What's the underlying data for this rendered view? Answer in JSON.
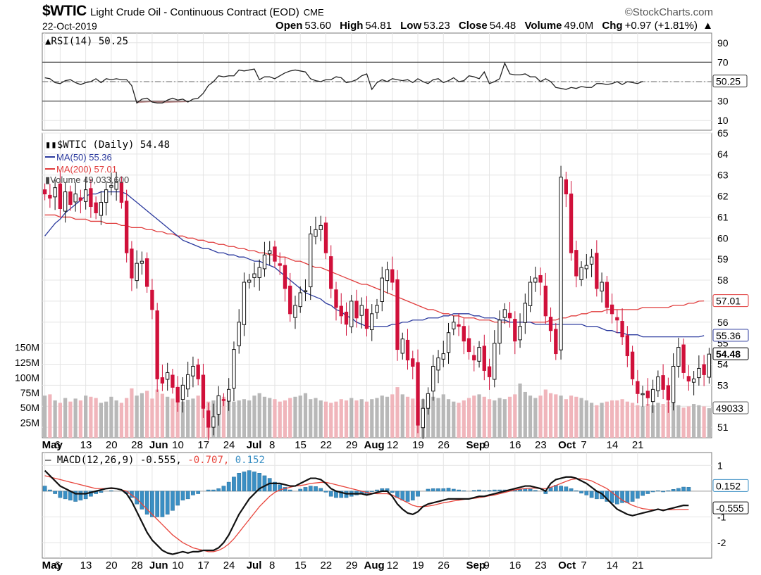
{
  "header": {
    "symbol": "$WTIC",
    "description": "Light Crude Oil - Continuous Contract (EOD)",
    "exchange": "CME",
    "brand": "©StockCharts.com",
    "date": "22-Oct-2019",
    "open_label": "Open",
    "open": "53.60",
    "high_label": "High",
    "high": "54.81",
    "low_label": "Low",
    "low": "53.23",
    "close_label": "Close",
    "close": "54.48",
    "volume_label": "Volume",
    "volume": "49.0M",
    "chg_label": "Chg",
    "chg": "+0.97 (+1.81%)"
  },
  "colors": {
    "up": "#ffffff",
    "down": "#d0103a",
    "ma50": "#2b3a9e",
    "ma200": "#e03c3c",
    "macd_signal": "#e8453c",
    "macd_hist": "#3a8fc4",
    "vol_up": "#b8b8b8",
    "vol_down": "#f0b5bb"
  },
  "chart_data": [
    {
      "type": "line",
      "panel": "rsi",
      "legend": "RSI(14) 50.25",
      "ylim": [
        0,
        100
      ],
      "yticks": [
        "90",
        "70",
        "50",
        "30",
        "10"
      ],
      "reference_lines": [
        70,
        30
      ],
      "last_value_label": "50.25",
      "values": [
        54,
        53,
        49,
        48,
        51,
        52,
        49,
        47,
        49,
        50,
        53,
        49,
        53,
        52,
        53,
        52,
        52,
        46,
        28,
        32,
        33,
        29,
        28,
        28,
        31,
        33,
        31,
        32,
        29,
        32,
        33,
        38,
        46,
        50,
        56,
        55,
        56,
        56,
        62,
        61,
        62,
        63,
        52,
        55,
        55,
        53,
        56,
        59,
        61,
        62,
        61,
        60,
        53,
        51,
        50,
        52,
        52,
        55,
        54,
        49,
        50,
        52,
        56,
        58,
        42,
        49,
        52,
        50,
        53,
        52,
        51,
        52,
        49,
        53,
        50,
        48,
        52,
        53,
        49,
        51,
        54,
        50,
        51,
        56,
        55,
        53,
        60,
        48,
        50,
        53,
        69,
        58,
        57,
        57,
        58,
        55,
        55,
        50,
        53,
        50,
        44,
        43,
        42,
        44,
        43,
        45,
        44,
        44,
        48,
        48,
        47,
        48,
        50,
        47,
        50,
        49,
        48,
        50.25
      ]
    },
    {
      "type": "candlestick",
      "panel": "price",
      "legend": {
        "price": "$WTIC (Daily) 54.48",
        "ma50": "MA(50) 55.36",
        "ma200": "MA(200) 57.01",
        "volume": "Volume 49,033,600"
      },
      "ylim": [
        50.5,
        65
      ],
      "yticks": [
        "65",
        "64",
        "63",
        "62",
        "61",
        "60",
        "59",
        "58",
        "57",
        "56",
        "55",
        "54",
        "53",
        "52",
        "51"
      ],
      "volume_ticks": [
        "150M",
        "125M",
        "100M",
        "75M",
        "50M",
        "25M"
      ],
      "last_labels": {
        "ma200": "57.01",
        "ma50": "55.36",
        "close": "54.48",
        "volume": "49033"
      },
      "x_labels": [
        "May",
        "6",
        "13",
        "20",
        "28",
        "Jun",
        "10",
        "17",
        "24",
        "Jul",
        "8",
        "15",
        "22",
        "29",
        "Aug",
        "12",
        "19",
        "26",
        "Sep",
        "9",
        "16",
        "23",
        "Oct",
        "7",
        "14",
        "21"
      ],
      "closes": [
        62.1,
        61.9,
        62.4,
        61.4,
        62.2,
        61.6,
        62.1,
        61.8,
        62.3,
        61.5,
        61.2,
        61.7,
        62.3,
        62.5,
        62.7,
        61.7,
        59.3,
        58.1,
        58.8,
        58.9,
        57.7,
        56.6,
        53.3,
        53.1,
        53.6,
        52.9,
        52.2,
        53.0,
        53.5,
        53.9,
        53.3,
        51.9,
        51.0,
        51.5,
        52.5,
        52.3,
        52.8,
        54.7,
        56.0,
        57.9,
        58.0,
        58.3,
        58.6,
        59.2,
        59.4,
        58.9,
        58.7,
        57.6,
        56.4,
        56.8,
        57.4,
        57.5,
        60.2,
        60.4,
        60.6,
        59.3,
        57.6,
        56.7,
        56.3,
        55.9,
        57.0,
        56.2,
        56.8,
        55.7,
        56.4,
        56.8,
        58.1,
        58.5,
        57.9,
        54.7,
        55.2,
        54.2,
        53.9,
        51.1,
        51.9,
        52.6,
        53.9,
        54.3,
        54.5,
        55.5,
        56.0,
        55.8,
        55.1,
        54.6,
        54.2,
        54.8,
        53.7,
        53.4,
        55.0,
        56.1,
        56.6,
        56.2,
        55.1,
        55.8,
        56.9,
        57.9,
        58.1,
        57.9,
        56.3,
        55.6,
        54.5,
        62.9,
        62.1,
        59.3,
        58.2,
        58.6,
        58.7,
        59.1,
        57.6,
        57.9,
        56.7,
        56.4,
        56.1,
        55.3,
        54.4,
        53.3,
        52.6,
        52.6,
        52.4,
        52.8,
        53.4,
        52.8,
        52.3,
        53.9,
        54.8,
        53.6,
        53.2,
        53.3,
        53.8,
        53.5,
        54.48
      ],
      "ma50": [
        60.1,
        60.4,
        60.7,
        60.9,
        61.2,
        61.4,
        61.6,
        61.8,
        62.0,
        62.1,
        62.1,
        62.2,
        62.2,
        62.2,
        62.2,
        62.2,
        62.1,
        61.9,
        61.7,
        61.5,
        61.3,
        61.1,
        60.9,
        60.7,
        60.5,
        60.3,
        60.1,
        59.9,
        59.8,
        59.7,
        59.6,
        59.5,
        59.5,
        59.4,
        59.3,
        59.3,
        59.2,
        59.2,
        59.1,
        59.1,
        59.0,
        58.9,
        58.9,
        58.8,
        58.7,
        58.6,
        58.4,
        58.2,
        58.0,
        57.8,
        57.6,
        57.4,
        57.3,
        57.2,
        57.1,
        56.9,
        56.8,
        56.6,
        56.5,
        56.3,
        56.2,
        56.0,
        55.9,
        55.8,
        55.8,
        55.8,
        55.8,
        55.8,
        55.9,
        55.9,
        56.0,
        56.0,
        56.1,
        56.1,
        56.1,
        56.2,
        56.2,
        56.2,
        56.3,
        56.3,
        56.4,
        56.4,
        56.4,
        56.4,
        56.3,
        56.3,
        56.2,
        56.2,
        56.2,
        56.1,
        56.1,
        56.0,
        56.0,
        56.0,
        56.0,
        56.0,
        55.9,
        55.9,
        55.9,
        55.9,
        55.9,
        55.9,
        55.9,
        55.9,
        55.9,
        55.9,
        55.8,
        55.8,
        55.8,
        55.7,
        55.6,
        55.6,
        55.5,
        55.5,
        55.4,
        55.4,
        55.4,
        55.3,
        55.3,
        55.3,
        55.3,
        55.3,
        55.3,
        55.3,
        55.3,
        55.3,
        55.3,
        55.3,
        55.3,
        55.36
      ],
      "ma200": [
        61.1,
        61.1,
        61.1,
        61.0,
        61.0,
        61.0,
        60.9,
        60.9,
        60.9,
        60.8,
        60.8,
        60.8,
        60.7,
        60.7,
        60.7,
        60.6,
        60.6,
        60.5,
        60.5,
        60.5,
        60.4,
        60.4,
        60.3,
        60.3,
        60.2,
        60.2,
        60.1,
        60.1,
        60.0,
        60.0,
        59.9,
        59.9,
        59.8,
        59.8,
        59.7,
        59.7,
        59.6,
        59.6,
        59.5,
        59.5,
        59.4,
        59.4,
        59.3,
        59.3,
        59.2,
        59.2,
        59.1,
        59.1,
        59.0,
        58.9,
        58.9,
        58.8,
        58.7,
        58.6,
        58.6,
        58.5,
        58.4,
        58.3,
        58.2,
        58.1,
        58.0,
        57.9,
        57.8,
        57.8,
        57.7,
        57.6,
        57.5,
        57.4,
        57.3,
        57.2,
        57.1,
        57.0,
        56.9,
        56.8,
        56.7,
        56.6,
        56.6,
        56.5,
        56.4,
        56.4,
        56.3,
        56.3,
        56.2,
        56.2,
        56.2,
        56.1,
        56.1,
        56.1,
        56.0,
        56.0,
        56.0,
        56.0,
        56.0,
        56.0,
        56.0,
        56.0,
        56.0,
        56.0,
        56.0,
        56.1,
        56.1,
        56.2,
        56.2,
        56.3,
        56.3,
        56.4,
        56.4,
        56.5,
        56.5,
        56.5,
        56.6,
        56.6,
        56.6,
        56.6,
        56.6,
        56.6,
        56.6,
        56.7,
        56.7,
        56.7,
        56.7,
        56.7,
        56.7,
        56.8,
        56.8,
        56.8,
        56.9,
        56.9,
        57.0,
        57.01
      ],
      "volume_m": [
        70,
        72,
        62,
        58,
        66,
        60,
        65,
        62,
        70,
        68,
        66,
        58,
        60,
        68,
        62,
        58,
        66,
        82,
        70,
        74,
        78,
        65,
        80,
        73,
        68,
        65,
        70,
        60,
        63,
        65,
        70,
        72,
        60,
        62,
        66,
        68,
        76,
        60,
        62,
        64,
        62,
        70,
        74,
        68,
        66,
        64,
        60,
        62,
        66,
        68,
        70,
        74,
        64,
        66,
        62,
        60,
        58,
        60,
        64,
        62,
        66,
        62,
        64,
        60,
        64,
        66,
        70,
        68,
        72,
        84,
        72,
        68,
        65,
        60,
        64,
        70,
        68,
        66,
        72,
        64,
        60,
        58,
        62,
        66,
        70,
        72,
        68,
        64,
        62,
        66,
        64,
        68,
        72,
        90,
        76,
        70,
        66,
        70,
        80,
        74,
        72,
        70,
        64,
        70,
        68,
        66,
        62,
        58,
        54,
        58,
        60,
        62,
        62,
        64,
        60,
        58,
        54,
        52,
        56,
        54,
        58,
        56,
        60,
        62,
        54,
        50,
        52,
        56,
        54,
        52,
        49
      ]
    },
    {
      "type": "line",
      "panel": "macd",
      "legend": {
        "name": "MACD(12,26,9)",
        "macd": "-0.555",
        "signal": "-0.707",
        "hist": "0.152"
      },
      "ylim": [
        -2.6,
        1.5
      ],
      "yticks": [
        "1",
        "-1",
        "-2"
      ],
      "last_labels": {
        "hist": "0.152",
        "macd": "-0.555"
      },
      "macd": [
        0.8,
        0.6,
        0.4,
        0.2,
        0.1,
        0.0,
        -0.1,
        -0.1,
        -0.1,
        -0.05,
        0.0,
        0.05,
        0.1,
        0.12,
        0.1,
        0.05,
        -0.1,
        -0.4,
        -0.8,
        -1.2,
        -1.6,
        -1.9,
        -2.1,
        -2.3,
        -2.4,
        -2.45,
        -2.4,
        -2.35,
        -2.4,
        -2.35,
        -2.35,
        -2.3,
        -2.3,
        -2.3,
        -2.2,
        -2.0,
        -1.7,
        -1.3,
        -0.9,
        -0.6,
        -0.3,
        -0.1,
        0.1,
        0.2,
        0.3,
        0.3,
        0.3,
        0.25,
        0.2,
        0.2,
        0.3,
        0.4,
        0.5,
        0.5,
        0.45,
        0.3,
        0.1,
        0.0,
        -0.05,
        -0.1,
        -0.1,
        -0.1,
        -0.1,
        -0.15,
        -0.1,
        -0.05,
        0.0,
        0.0,
        -0.2,
        -0.5,
        -0.7,
        -0.85,
        -0.9,
        -0.8,
        -0.6,
        -0.5,
        -0.45,
        -0.4,
        -0.35,
        -0.3,
        -0.3,
        -0.3,
        -0.3,
        -0.3,
        -0.25,
        -0.2,
        -0.2,
        -0.15,
        -0.1,
        -0.05,
        0.0,
        0.05,
        0.1,
        0.15,
        0.2,
        0.2,
        0.15,
        0.1,
        0.0,
        0.3,
        0.45,
        0.5,
        0.55,
        0.55,
        0.5,
        0.4,
        0.3,
        0.15,
        0.0,
        -0.1,
        -0.3,
        -0.5,
        -0.7,
        -0.8,
        -0.9,
        -0.95,
        -0.9,
        -0.85,
        -0.8,
        -0.75,
        -0.7,
        -0.75,
        -0.7,
        -0.65,
        -0.6,
        -0.55,
        -0.555
      ],
      "signal": [
        0.6,
        0.55,
        0.5,
        0.45,
        0.4,
        0.35,
        0.3,
        0.25,
        0.2,
        0.15,
        0.1,
        0.1,
        0.1,
        0.1,
        0.1,
        0.05,
        0.0,
        -0.15,
        -0.3,
        -0.5,
        -0.7,
        -0.9,
        -1.1,
        -1.3,
        -1.5,
        -1.7,
        -1.85,
        -2.0,
        -2.1,
        -2.2,
        -2.25,
        -2.3,
        -2.35,
        -2.35,
        -2.3,
        -2.2,
        -2.05,
        -1.85,
        -1.6,
        -1.35,
        -1.1,
        -0.85,
        -0.6,
        -0.4,
        -0.2,
        -0.05,
        0.05,
        0.1,
        0.15,
        0.2,
        0.22,
        0.25,
        0.3,
        0.32,
        0.34,
        0.34,
        0.3,
        0.25,
        0.2,
        0.15,
        0.1,
        0.05,
        0.0,
        -0.05,
        -0.08,
        -0.1,
        -0.1,
        -0.1,
        -0.15,
        -0.25,
        -0.35,
        -0.45,
        -0.55,
        -0.6,
        -0.6,
        -0.58,
        -0.55,
        -0.5,
        -0.45,
        -0.42,
        -0.38,
        -0.35,
        -0.32,
        -0.3,
        -0.28,
        -0.25,
        -0.22,
        -0.18,
        -0.15,
        -0.1,
        -0.05,
        0.0,
        0.05,
        0.08,
        0.1,
        0.12,
        0.12,
        0.1,
        0.1,
        0.15,
        0.22,
        0.3,
        0.38,
        0.45,
        0.48,
        0.48,
        0.45,
        0.4,
        0.3,
        0.2,
        0.1,
        -0.05,
        -0.2,
        -0.35,
        -0.45,
        -0.55,
        -0.62,
        -0.68,
        -0.7,
        -0.72,
        -0.72,
        -0.72,
        -0.72,
        -0.72,
        -0.71,
        -0.71,
        -0.707
      ]
    }
  ]
}
